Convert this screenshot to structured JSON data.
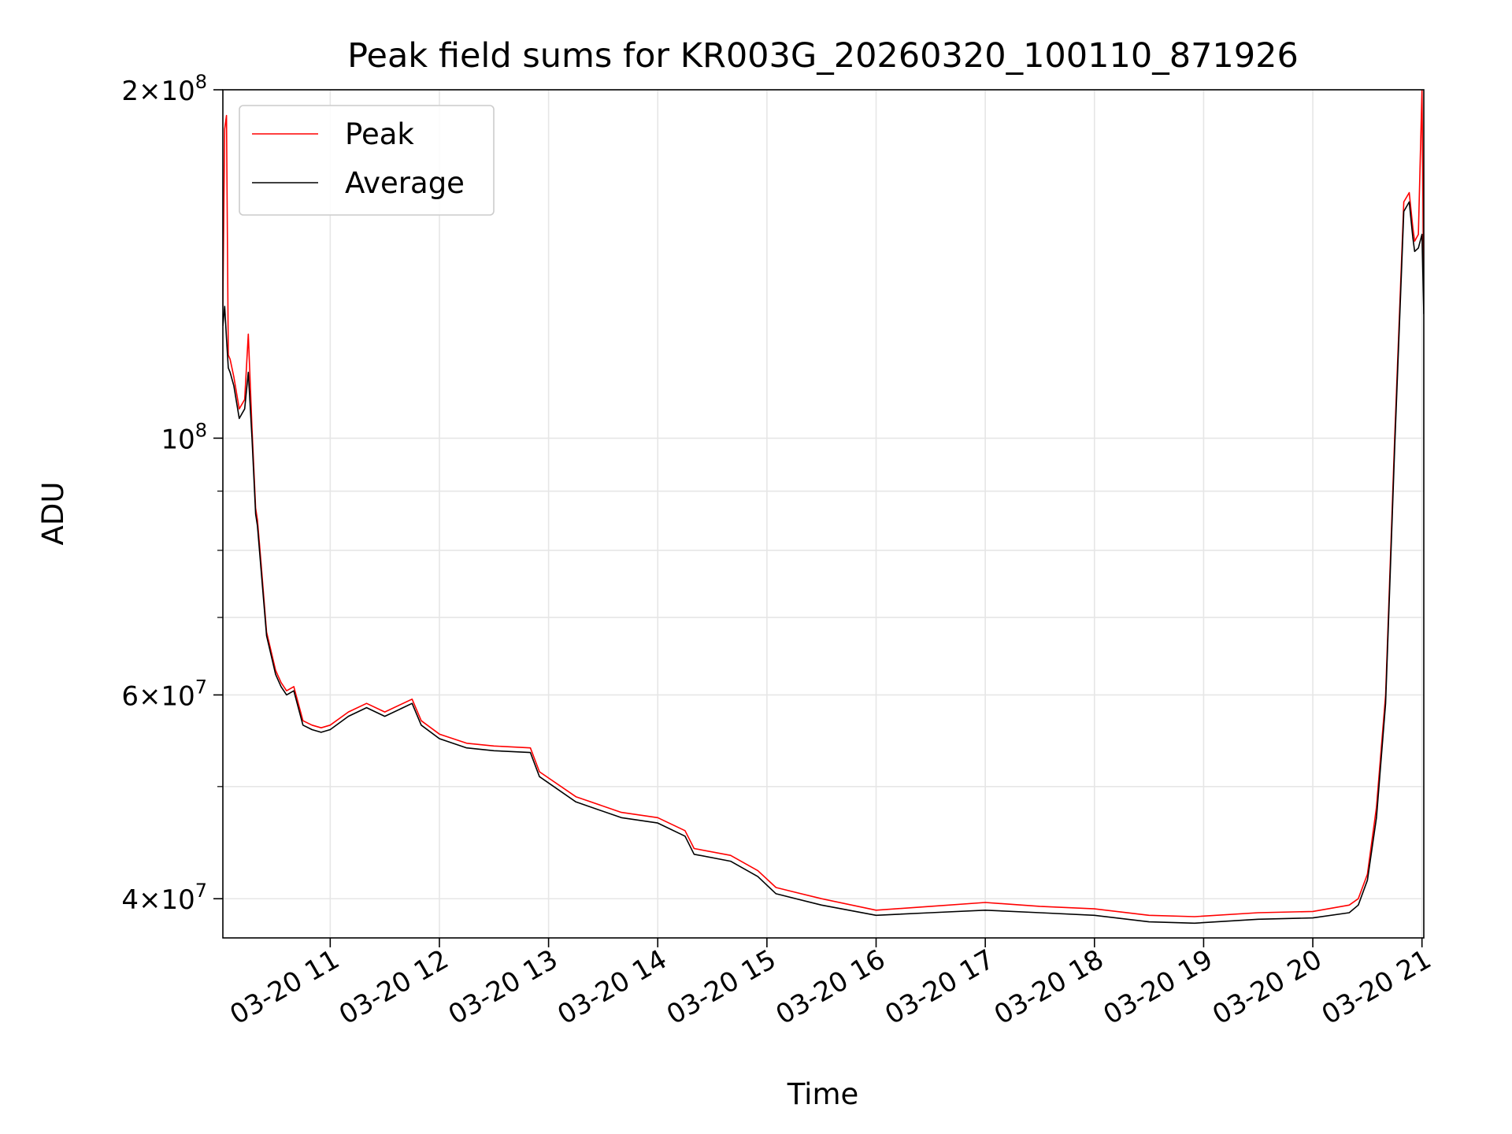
{
  "chart_data": {
    "type": "line",
    "title": "Peak field sums for KR003G_20260320_100110_871926",
    "xlabel": "Time",
    "ylabel": "ADU",
    "yscale": "log",
    "ylim": [
      37000000,
      200000000
    ],
    "xlim": [
      "03-20 10:01",
      "03-20 21:01"
    ],
    "grid": true,
    "legend_position": "upper-left",
    "x_ticks": [
      "03-20 11",
      "03-20 12",
      "03-20 13",
      "03-20 14",
      "03-20 15",
      "03-20 16",
      "03-20 17",
      "03-20 18",
      "03-20 19",
      "03-20 20",
      "03-20 21"
    ],
    "y_ticks": [
      {
        "value": 40000000,
        "mantissa": "4",
        "exponent": "7"
      },
      {
        "value": 60000000,
        "mantissa": "6",
        "exponent": "7"
      },
      {
        "value": 100000000,
        "mantissa": "",
        "exponent": "8"
      },
      {
        "value": 200000000,
        "mantissa": "2",
        "exponent": "8"
      }
    ],
    "series": [
      {
        "name": "Peak",
        "color": "#ff0000",
        "x": [
          "03-20 10:01",
          "03-20 10:02",
          "03-20 10:03",
          "03-20 10:04",
          "03-20 10:05",
          "03-20 10:07",
          "03-20 10:10",
          "03-20 10:13",
          "03-20 10:15",
          "03-20 10:17",
          "03-20 10:19",
          "03-20 10:20",
          "03-20 10:22",
          "03-20 10:25",
          "03-20 10:30",
          "03-20 10:33",
          "03-20 10:36",
          "03-20 10:40",
          "03-20 10:45",
          "03-20 10:50",
          "03-20 10:55",
          "03-20 11:00",
          "03-20 11:10",
          "03-20 11:20",
          "03-20 11:30",
          "03-20 11:45",
          "03-20 11:50",
          "03-20 12:00",
          "03-20 12:15",
          "03-20 12:30",
          "03-20 12:50",
          "03-20 12:55",
          "03-20 13:15",
          "03-20 13:40",
          "03-20 14:00",
          "03-20 14:15",
          "03-20 14:20",
          "03-20 14:40",
          "03-20 14:55",
          "03-20 15:05",
          "03-20 15:30",
          "03-20 16:00",
          "03-20 16:30",
          "03-20 17:00",
          "03-20 17:30",
          "03-20 18:00",
          "03-20 18:30",
          "03-20 18:55",
          "03-20 19:30",
          "03-20 20:00",
          "03-20 20:20",
          "03-20 20:25",
          "03-20 20:30",
          "03-20 20:35",
          "03-20 20:40",
          "03-20 20:45",
          "03-20 20:50",
          "03-20 20:53",
          "03-20 20:55",
          "03-20 20:56",
          "03-20 20:58",
          "03-20 21:00",
          "03-20 21:01"
        ],
        "y": [
          130000000,
          185000000,
          190000000,
          118000000,
          117000000,
          113000000,
          106000000,
          108000000,
          123000000,
          102000000,
          87000000,
          85000000,
          78000000,
          68000000,
          63000000,
          61500000,
          60500000,
          61000000,
          57000000,
          56500000,
          56200000,
          56500000,
          58000000,
          59000000,
          58000000,
          59500000,
          57000000,
          55500000,
          54500000,
          54200000,
          54000000,
          51500000,
          49000000,
          47500000,
          47000000,
          45800000,
          44200000,
          43600000,
          42300000,
          40900000,
          40000000,
          39100000,
          39400000,
          39700000,
          39400000,
          39200000,
          38700000,
          38600000,
          38900000,
          39000000,
          39500000,
          40000000,
          42000000,
          48000000,
          60000000,
          100000000,
          160000000,
          163000000,
          152000000,
          148000000,
          150000000,
          200000000,
          130000000
        ]
      },
      {
        "name": "Average",
        "color": "#000000",
        "x": [
          "03-20 10:01",
          "03-20 10:02",
          "03-20 10:03",
          "03-20 10:04",
          "03-20 10:05",
          "03-20 10:07",
          "03-20 10:10",
          "03-20 10:13",
          "03-20 10:15",
          "03-20 10:17",
          "03-20 10:19",
          "03-20 10:20",
          "03-20 10:22",
          "03-20 10:25",
          "03-20 10:30",
          "03-20 10:33",
          "03-20 10:36",
          "03-20 10:40",
          "03-20 10:45",
          "03-20 10:50",
          "03-20 10:55",
          "03-20 11:00",
          "03-20 11:10",
          "03-20 11:20",
          "03-20 11:30",
          "03-20 11:45",
          "03-20 11:50",
          "03-20 12:00",
          "03-20 12:15",
          "03-20 12:30",
          "03-20 12:50",
          "03-20 12:55",
          "03-20 13:15",
          "03-20 13:40",
          "03-20 14:00",
          "03-20 14:15",
          "03-20 14:20",
          "03-20 14:40",
          "03-20 14:55",
          "03-20 15:05",
          "03-20 15:30",
          "03-20 16:00",
          "03-20 16:30",
          "03-20 17:00",
          "03-20 17:30",
          "03-20 18:00",
          "03-20 18:30",
          "03-20 18:55",
          "03-20 19:30",
          "03-20 20:00",
          "03-20 20:20",
          "03-20 20:25",
          "03-20 20:30",
          "03-20 20:35",
          "03-20 20:40",
          "03-20 20:45",
          "03-20 20:50",
          "03-20 20:53",
          "03-20 20:55",
          "03-20 20:56",
          "03-20 20:58",
          "03-20 21:00",
          "03-20 21:01"
        ],
        "y": [
          125000000,
          130000000,
          122000000,
          115000000,
          114000000,
          111000000,
          104000000,
          106000000,
          114000000,
          100000000,
          86000000,
          84000000,
          77000000,
          67500000,
          62500000,
          61000000,
          60000000,
          60500000,
          56500000,
          56000000,
          55700000,
          56000000,
          57500000,
          58500000,
          57500000,
          59000000,
          56500000,
          55000000,
          54000000,
          53700000,
          53500000,
          51000000,
          48500000,
          47000000,
          46500000,
          45300000,
          43700000,
          43100000,
          41800000,
          40400000,
          39500000,
          38700000,
          38900000,
          39100000,
          38900000,
          38700000,
          38200000,
          38100000,
          38400000,
          38500000,
          38900000,
          39500000,
          41500000,
          47000000,
          59000000,
          98000000,
          157000000,
          160000000,
          149000000,
          145000000,
          146000000,
          150000000,
          128000000
        ]
      }
    ]
  }
}
